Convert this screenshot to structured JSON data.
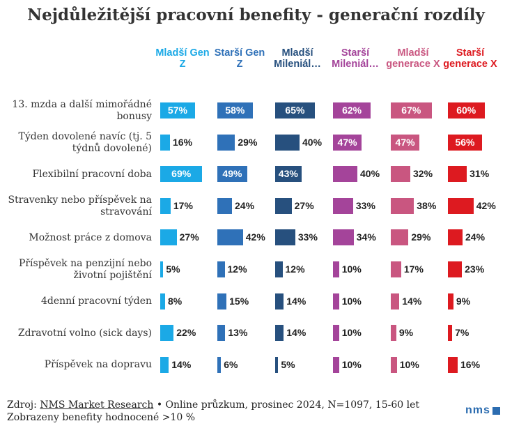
{
  "title": "Nejdůležitější pracovní benefity - generační rozdíly",
  "chart_data": {
    "type": "bar",
    "orientation": "horizontal",
    "categories": [
      "13. mzda a další mimořádné bonusy",
      "Týden dovolené navíc (tj. 5 týdnů dovolené)",
      "Flexibilní pracovní doba",
      "Stravenky nebo příspěvek na stravování",
      "Možnost práce z domova",
      "Příspěvek na penzijní nebo životní pojištění",
      "4denní pracovní týden",
      "Zdravotní volno (sick days)",
      "Příspěvek na dopravu"
    ],
    "unit": "%",
    "xlim": [
      0,
      100
    ],
    "series": [
      {
        "name": "Mladší Gen Z",
        "color": "#1ba9e6",
        "values": [
          57,
          16,
          69,
          17,
          27,
          5,
          8,
          22,
          14
        ]
      },
      {
        "name": "Starší Gen Z",
        "color": "#2f71b8",
        "values": [
          58,
          29,
          49,
          24,
          42,
          12,
          15,
          13,
          6
        ]
      },
      {
        "name": "Mladší Mileniál…",
        "color": "#27507e",
        "values": [
          65,
          40,
          43,
          27,
          33,
          12,
          14,
          14,
          5
        ]
      },
      {
        "name": "Starší Mileniál…",
        "color": "#a4449a",
        "values": [
          62,
          47,
          40,
          33,
          34,
          10,
          10,
          10,
          10
        ]
      },
      {
        "name": "Mladší generace X",
        "color": "#c95680",
        "values": [
          67,
          47,
          32,
          38,
          29,
          17,
          14,
          9,
          10
        ]
      },
      {
        "name": "Starší generace X",
        "color": "#dd1a20",
        "values": [
          60,
          56,
          31,
          42,
          24,
          23,
          9,
          7,
          16
        ]
      }
    ]
  },
  "footer": {
    "source_prefix": "Zdroj: ",
    "source_name": "NMS Market Research",
    "source_rest": " • Online průzkum, prosinec 2024, N=1097, 15-60 let",
    "note": "Zobrazeny benefity hodnocené >10 %"
  },
  "logo": {
    "text": "nms",
    "color": "#2b6cb0"
  }
}
